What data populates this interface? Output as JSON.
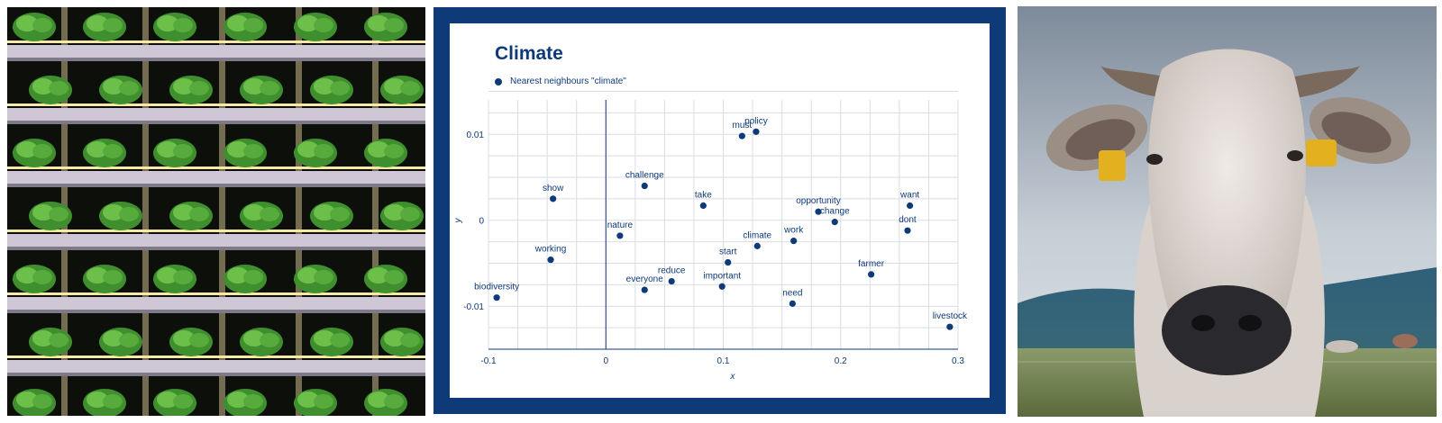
{
  "left_image": {
    "subject": "vertical hydroponic farm with lettuce under LED strips"
  },
  "right_image": {
    "subject": "white cow with yellow ear tags in a meadow"
  },
  "colors": {
    "frame": "#0e3a78",
    "marker": "#0e3a78",
    "grid": "#d9dde3",
    "axis": "#0e3a78"
  },
  "chart_data": {
    "type": "scatter",
    "title": "Climate",
    "legend": {
      "position": "top-left",
      "entries": [
        "Nearest neighbours \"climate\""
      ]
    },
    "xlabel": "x",
    "ylabel": "y",
    "xlim": [
      -0.1,
      0.3
    ],
    "ylim": [
      -0.015,
      0.014
    ],
    "xticks": [
      -0.1,
      0,
      0.1,
      0.2,
      0.3
    ],
    "xtick_labels": [
      "-0.1",
      "0",
      "0.1",
      "0.2",
      "0.3"
    ],
    "yticks": [
      -0.01,
      0,
      0.01
    ],
    "ytick_labels": [
      "-0.01",
      "0",
      "0.01"
    ],
    "grid": true,
    "series": [
      {
        "name": "Nearest neighbours \"climate\"",
        "points": [
          {
            "label": "biodiversity",
            "x": -0.093,
            "y": -0.009
          },
          {
            "label": "working",
            "x": -0.047,
            "y": -0.0046
          },
          {
            "label": "show",
            "x": -0.045,
            "y": 0.0025
          },
          {
            "label": "nature",
            "x": 0.012,
            "y": -0.0018
          },
          {
            "label": "challenge",
            "x": 0.033,
            "y": 0.004
          },
          {
            "label": "everyone",
            "x": 0.033,
            "y": -0.0081
          },
          {
            "label": "reduce",
            "x": 0.056,
            "y": -0.0071
          },
          {
            "label": "take",
            "x": 0.083,
            "y": 0.0017
          },
          {
            "label": "important",
            "x": 0.099,
            "y": -0.0077
          },
          {
            "label": "start",
            "x": 0.104,
            "y": -0.0049
          },
          {
            "label": "must",
            "x": 0.116,
            "y": 0.0098
          },
          {
            "label": "policy",
            "x": 0.128,
            "y": 0.0103
          },
          {
            "label": "climate",
            "x": 0.129,
            "y": -0.003
          },
          {
            "label": "need",
            "x": 0.159,
            "y": -0.0097
          },
          {
            "label": "work",
            "x": 0.16,
            "y": -0.0024
          },
          {
            "label": "opportunity",
            "x": 0.181,
            "y": 0.001
          },
          {
            "label": "change",
            "x": 0.195,
            "y": -0.0002
          },
          {
            "label": "farmer",
            "x": 0.226,
            "y": -0.0063
          },
          {
            "label": "dont",
            "x": 0.257,
            "y": -0.0012
          },
          {
            "label": "want",
            "x": 0.259,
            "y": 0.0017
          },
          {
            "label": "livestock",
            "x": 0.293,
            "y": -0.0124
          }
        ]
      }
    ]
  }
}
